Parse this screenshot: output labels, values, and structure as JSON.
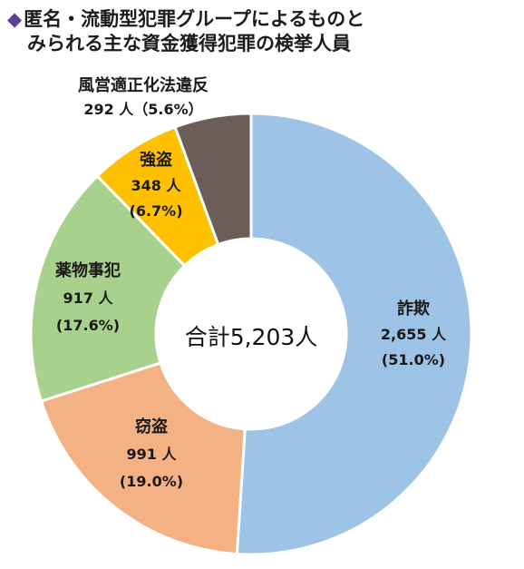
{
  "title_lines": [
    "匿名・流動型犯罪グループによるものと",
    "みられる主な資金獲得犯罪の検挙人員"
  ],
  "center_label": "合計5,203人",
  "chart_data": {
    "type": "pie",
    "title": "匿名・流動型犯罪グループによるものとみられる主な資金獲得犯罪の検挙人員",
    "total": 5203,
    "unit": "人",
    "series": [
      {
        "name": "詐欺",
        "value": 2655,
        "value_label": "2,655 人",
        "percent_label": "(51.0%)",
        "color": "#9dc3e6"
      },
      {
        "name": "窃盗",
        "value": 991,
        "value_label": "991 人",
        "percent_label": "(19.0%)",
        "color": "#f4b183"
      },
      {
        "name": "薬物事犯",
        "value": 917,
        "value_label": "917 人",
        "percent_label": "(17.6%)",
        "color": "#a9d18e"
      },
      {
        "name": "強盗",
        "value": 348,
        "value_label": "348 人",
        "percent_label": "(6.7%)",
        "color": "#ffc000"
      },
      {
        "name": "風営適正化法違反",
        "value": 292,
        "value_label": "292 人（5.6%）",
        "percent_label": "",
        "color": "#6b5e58"
      }
    ]
  }
}
